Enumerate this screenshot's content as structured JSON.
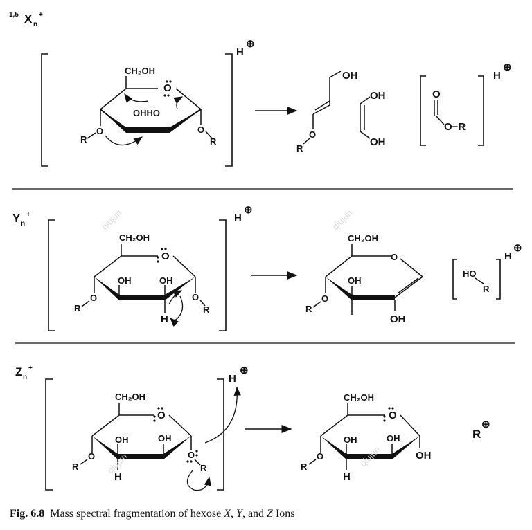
{
  "sections": {
    "x": {
      "label": "X",
      "sup": "1,5",
      "sub": "n",
      "charge": "+",
      "hydrogen": "H",
      "charge_symbol": "⊕",
      "ring": {
        "ch2oh": "CH₂OH",
        "ring_o": "O",
        "oh": "OHHO",
        "o_left": "O",
        "r_left": "R",
        "o_right": "O",
        "r_right": "R"
      },
      "products": {
        "enol_oh": "OH",
        "enol_o": "O",
        "enol_r": "R",
        "diol_top": "OH",
        "diol_bottom": "OH",
        "ester_carbonyl": "O",
        "ester_or": "O−R",
        "ester_h": "H",
        "ester_charge": "⊕"
      }
    },
    "y": {
      "label": "Y",
      "sub": "n",
      "charge": "+",
      "hydrogen": "H",
      "charge_symbol": "⊕",
      "ring": {
        "ch2oh": "CH₂OH",
        "ring_o": "O",
        "oh_left": "OH",
        "oh_right": "OH",
        "o_left": "O",
        "r_left": "R",
        "o_right": "O",
        "r_right": "R",
        "h_bottom": "H"
      },
      "products": {
        "ch2oh": "CH₂OH",
        "ring_o": "O",
        "oh_mid": "OH",
        "oh_bottom": "OH",
        "o_left": "O",
        "r_left": "R",
        "ho": "HO",
        "r": "R",
        "h": "H",
        "charge": "⊕"
      }
    },
    "z": {
      "label": "Z",
      "sub": "n",
      "charge": "+",
      "hydrogen": "H",
      "charge_symbol": "⊕",
      "ring": {
        "ch2oh": "CH₂OH",
        "ring_o": "O",
        "oh_left": "OH",
        "oh_right": "OH",
        "o_left": "O",
        "r_left": "R",
        "o_right": "O",
        "r_right": "R",
        "h_bottom": "H"
      },
      "products": {
        "ch2oh": "CH₂OH",
        "ring_o": "O",
        "oh_left": "OH",
        "oh_right": "OH",
        "oh_anomeric": "OH",
        "o_left": "O",
        "r_left": "R",
        "h_bottom": "H",
        "r_ion": "R",
        "r_charge": "⊕"
      }
    }
  },
  "watermark": "qiujun",
  "caption": {
    "prefix": "Fig. 6.8",
    "text_before_x": "Mass spectral fragmentation of hexose ",
    "x": "X",
    "sep1": ", ",
    "y": "Y",
    "sep2": ", and ",
    "z": "Z",
    "text_after": " Ions"
  }
}
